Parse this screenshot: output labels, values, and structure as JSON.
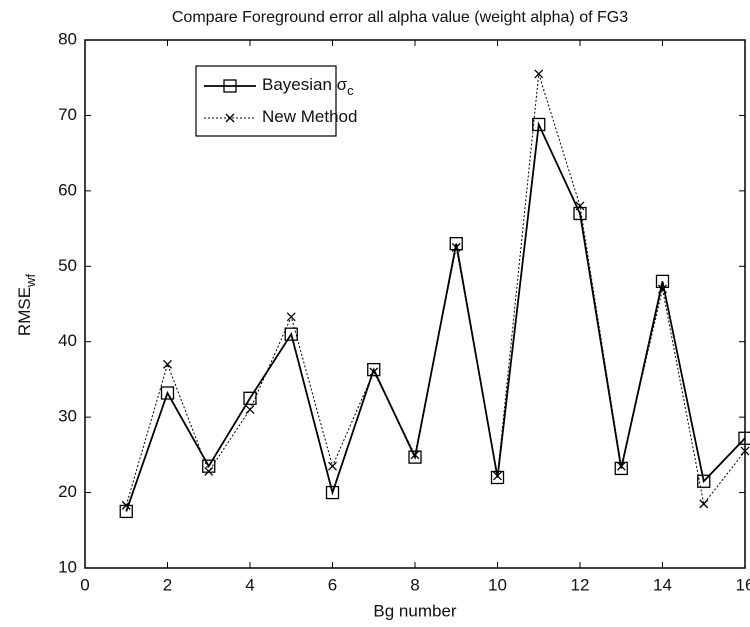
{
  "chart_data": {
    "type": "line",
    "title": "Compare Foreground error all alpha value (weight alpha) of FG3",
    "xlabel": "Bg number",
    "ylabel": "RMSE",
    "ylabel_sub": "wf",
    "x": [
      1,
      2,
      3,
      4,
      5,
      6,
      7,
      8,
      9,
      10,
      11,
      12,
      13,
      14,
      15,
      16
    ],
    "series": [
      {
        "name": "Bayesian σ",
        "name_sub": "c",
        "color": "#000000",
        "marker": "square",
        "dash": "solid",
        "values": [
          17.5,
          33.2,
          23.5,
          32.5,
          41,
          20,
          36.3,
          24.7,
          53,
          22,
          68.8,
          57,
          23.2,
          48,
          21.5,
          27.2
        ]
      },
      {
        "name": "New Method",
        "color": "#000000",
        "marker": "x",
        "dash": "dotted",
        "values": [
          18.3,
          37,
          22.8,
          31,
          43.3,
          23.5,
          36,
          25,
          52.5,
          22.2,
          75.5,
          58,
          23.5,
          47,
          18.5,
          25.5
        ]
      }
    ],
    "xlim": [
      0,
      16
    ],
    "xticks": [
      0,
      2,
      4,
      6,
      8,
      10,
      12,
      14,
      16
    ],
    "ylim": [
      10,
      80
    ],
    "yticks": [
      10,
      20,
      30,
      40,
      50,
      60,
      70,
      80
    ],
    "legend": "upper left",
    "grid": false
  }
}
